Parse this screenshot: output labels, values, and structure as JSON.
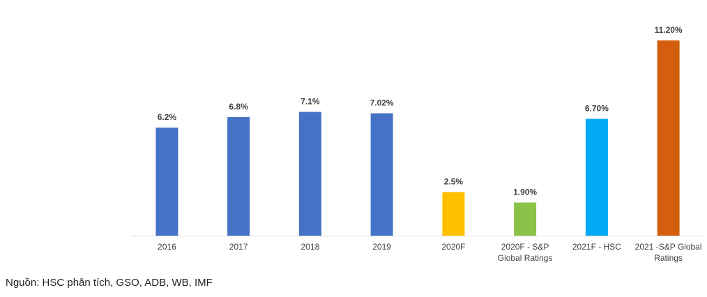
{
  "chart_data": {
    "type": "bar",
    "categories": [
      "2016",
      "2017",
      "2018",
      "2019",
      "2020F",
      "2020F - S&P Global Ratings",
      "2021F - HSC",
      "2021 -S&P Global Ratings"
    ],
    "category_lines": [
      [
        "2016"
      ],
      [
        "2017"
      ],
      [
        "2018"
      ],
      [
        "2019"
      ],
      [
        "2020F"
      ],
      [
        "2020F - S&P",
        "Global Ratings"
      ],
      [
        "2021F - HSC"
      ],
      [
        "2021 -S&P Global",
        "Ratings"
      ]
    ],
    "values": [
      6.2,
      6.8,
      7.1,
      7.02,
      2.5,
      1.9,
      6.7,
      11.2
    ],
    "data_labels": [
      "6.2%",
      "6.8%",
      "7.1%",
      "7.02%",
      "2.5%",
      "1.90%",
      "6.70%",
      "11.20%"
    ],
    "colors": [
      "#4472C4",
      "#4472C4",
      "#4472C4",
      "#4472C4",
      "#FFC000",
      "#8BC34A",
      "#03A9F4",
      "#D35F0E"
    ],
    "ylim": [
      0,
      12
    ],
    "grid": false,
    "legend": "none",
    "title": "",
    "xlabel": "",
    "ylabel": "",
    "axis_color": "#D9D9D9"
  },
  "footer": {
    "source": "Nguồn: HSC phân tích, GSO, ADB, WB, IMF"
  }
}
